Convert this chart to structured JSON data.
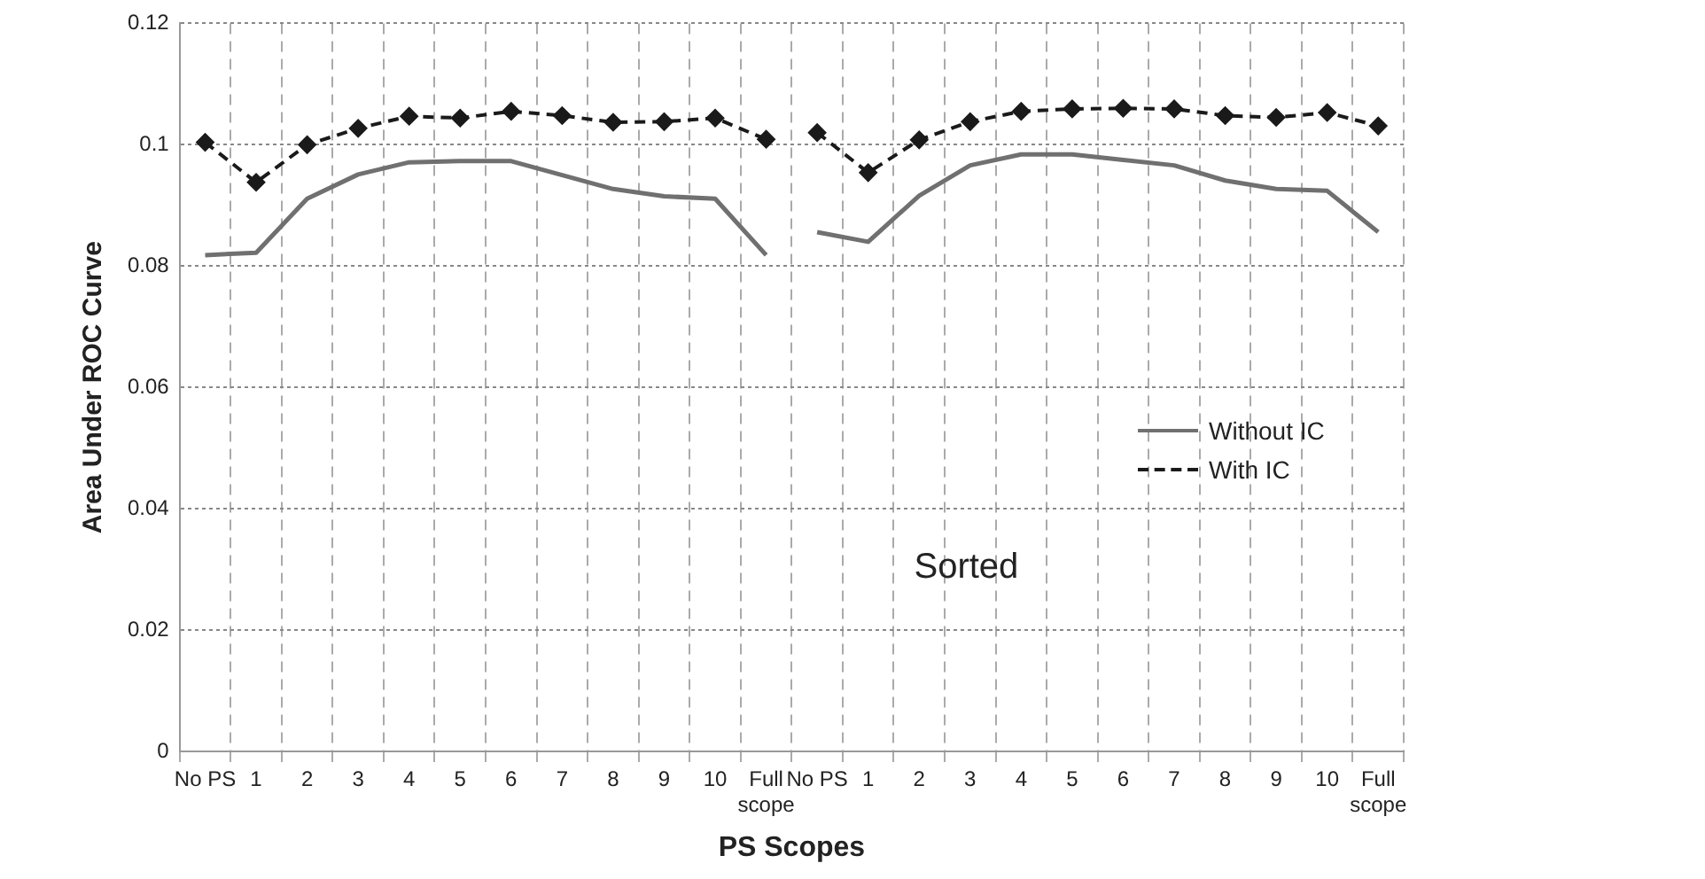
{
  "chart_data": {
    "type": "line",
    "xlabel": "PS Scopes",
    "ylabel": "Area Under ROC Curve",
    "categories": [
      "No PS",
      "1",
      "2",
      "3",
      "4",
      "5",
      "6",
      "7",
      "8",
      "9",
      "10",
      "Full\nscope",
      "No PS",
      "1",
      "2",
      "3",
      "4",
      "5",
      "6",
      "7",
      "8",
      "9",
      "10",
      "Full\nscope"
    ],
    "series": [
      {
        "name": "Without IC",
        "color": "#707070",
        "line_style": "solid",
        "marker": "none",
        "values": [
          0.0818,
          0.0822,
          0.0911,
          0.0951,
          0.0971,
          0.0973,
          0.0973,
          0.095,
          0.0927,
          0.0915,
          0.0911,
          0.0818,
          null,
          null,
          null,
          null,
          null,
          null,
          null,
          null,
          null,
          null,
          null,
          null
        ]
      },
      {
        "name": "With IC",
        "color": "#1a1a1a",
        "line_style": "dashed",
        "marker": "diamond",
        "values": [
          0.1004,
          0.0938,
          0.1,
          0.1027,
          0.1047,
          0.1044,
          0.1055,
          0.1048,
          0.1037,
          0.1038,
          0.1044,
          0.1009,
          null,
          null,
          null,
          null,
          null,
          null,
          null,
          null,
          null,
          null,
          null,
          null
        ]
      },
      {
        "color": "#707070",
        "line_style": "solid",
        "marker": "none",
        "values": [
          null,
          null,
          null,
          null,
          null,
          null,
          null,
          null,
          null,
          null,
          null,
          null,
          0.0856,
          0.084,
          0.0916,
          0.0966,
          0.0984,
          0.0984,
          0.0975,
          0.0966,
          0.0941,
          0.0927,
          0.0924,
          0.0856
        ]
      },
      {
        "color": "#1a1a1a",
        "line_style": "dashed",
        "marker": "diamond",
        "values": [
          null,
          null,
          null,
          null,
          null,
          null,
          null,
          null,
          null,
          null,
          null,
          null,
          0.102,
          0.0954,
          0.1008,
          0.1038,
          0.1055,
          0.1059,
          0.106,
          0.1059,
          0.1048,
          0.1045,
          0.1053,
          0.1031
        ]
      }
    ],
    "ylim": [
      0,
      0.12
    ],
    "yticks": [
      0,
      0.02,
      0.04,
      0.06,
      0.08,
      0.1,
      0.12
    ],
    "grid": true,
    "legend": "right",
    "annotations": [
      "Sorted"
    ]
  }
}
